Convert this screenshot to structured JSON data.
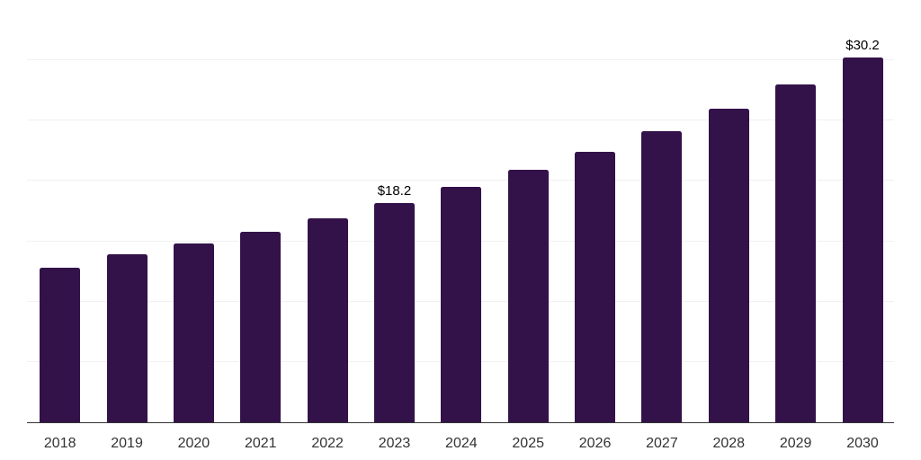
{
  "chart_data": {
    "type": "bar",
    "title": "",
    "xlabel": "",
    "ylabel": "",
    "categories": [
      "2018",
      "2019",
      "2020",
      "2021",
      "2022",
      "2023",
      "2024",
      "2025",
      "2026",
      "2027",
      "2028",
      "2029",
      "2030"
    ],
    "values": [
      12.8,
      13.9,
      14.8,
      15.8,
      16.9,
      18.2,
      19.5,
      20.9,
      22.4,
      24.1,
      26.0,
      28.0,
      30.2
    ],
    "annotations": [
      {
        "category": "2023",
        "index": 5,
        "text": "$18.2"
      },
      {
        "category": "2030",
        "index": 12,
        "text": "$30.2"
      }
    ],
    "ylim": [
      0,
      35
    ],
    "gridline_step": 5,
    "grid": "horizontal-only",
    "legend_position": "none",
    "colors": {
      "bar": "#33124a",
      "gridline": "#f1f1f1",
      "axis": "#333333",
      "tick_label": "#333333",
      "annotation": "#000000",
      "background": "#ffffff"
    }
  }
}
